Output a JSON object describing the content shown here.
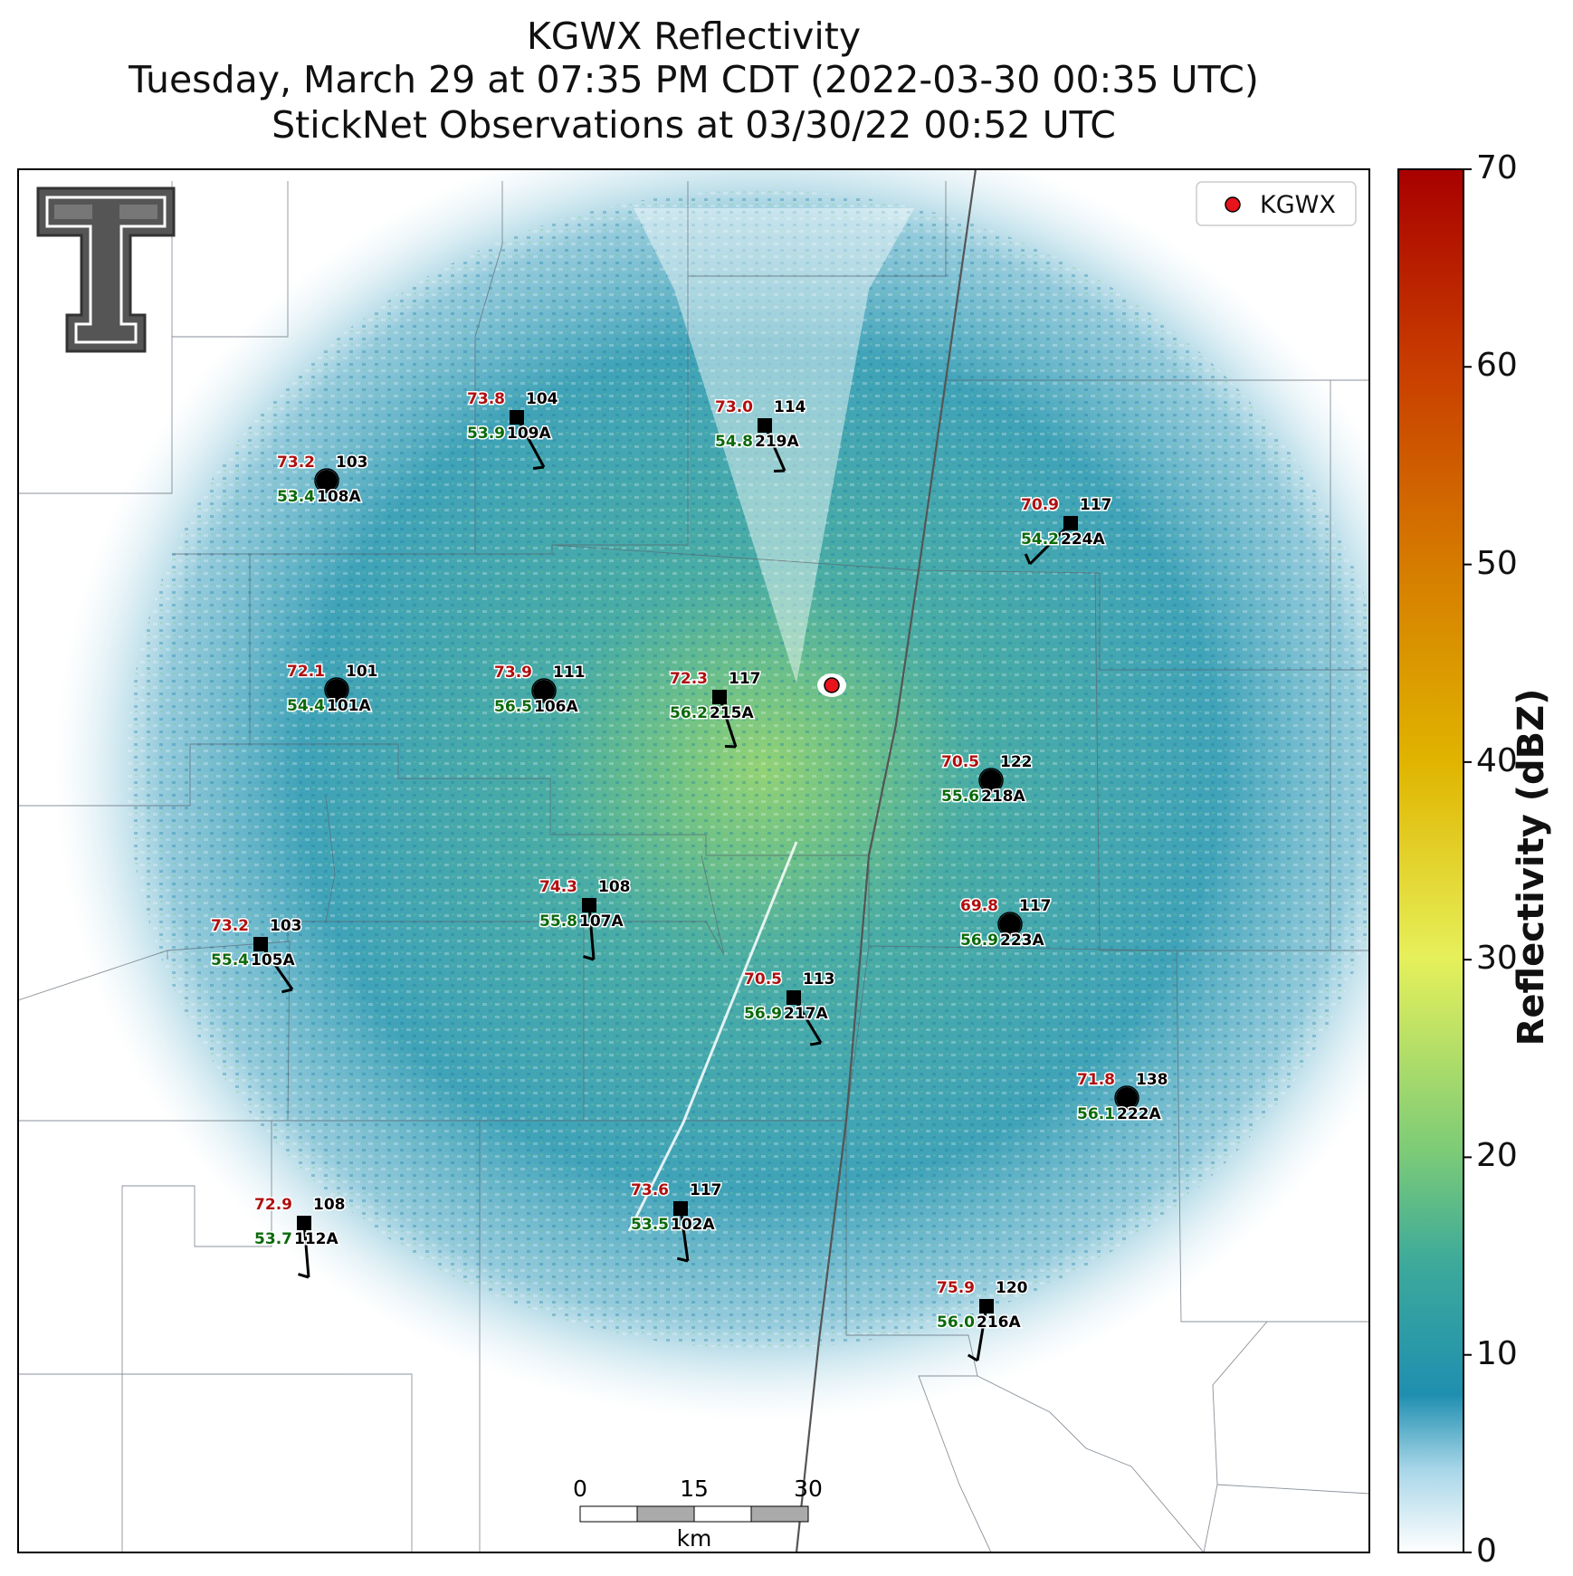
{
  "title": {
    "line1": "KGWX Reflectivity",
    "line2": "Tuesday, March 29 at 07:35 PM CDT (2022-03-30 00:35 UTC)",
    "line3": "StickNet Observations at 03/30/22 00:52 UTC"
  },
  "legend": {
    "label": "KGWX",
    "marker_color": "#e8141b"
  },
  "radar": {
    "id": "KGWX"
  },
  "colorbar": {
    "label": "Reflectivity (dBZ)",
    "ticks": [
      "0",
      "10",
      "20",
      "30",
      "40",
      "50",
      "60",
      "70"
    ],
    "min": 0,
    "max": 70,
    "colors": [
      {
        "stop": 0,
        "color": "#ffffff"
      },
      {
        "stop": 8,
        "color": "#1f8fb0"
      },
      {
        "stop": 15,
        "color": "#3daa9a"
      },
      {
        "stop": 20,
        "color": "#7ccb77"
      },
      {
        "stop": 30,
        "color": "#e6f05a"
      },
      {
        "stop": 40,
        "color": "#e0b500"
      },
      {
        "stop": 50,
        "color": "#d67d00"
      },
      {
        "stop": 60,
        "color": "#c83c00"
      },
      {
        "stop": 70,
        "color": "#a80000"
      }
    ]
  },
  "scalebar": {
    "ticks": [
      "0",
      "15",
      "30"
    ],
    "unit": "km"
  },
  "station_colors": {
    "temperature": "#b01010",
    "dewpoint": "#0b6a0b",
    "id": "#000000"
  },
  "stations": [
    {
      "id": "104",
      "temp": "73.8",
      "dew": "53.9",
      "sub": "109A",
      "marker": "square"
    },
    {
      "id": "114",
      "temp": "73.0",
      "dew": "54.8",
      "sub": "219A",
      "marker": "square"
    },
    {
      "id": "103",
      "temp": "73.2",
      "dew": "53.4",
      "sub": "108A",
      "marker": "circle"
    },
    {
      "id": "117",
      "temp": "70.9",
      "dew": "54.2",
      "sub": "224A",
      "marker": "square"
    },
    {
      "id": "101",
      "temp": "72.1",
      "dew": "54.4",
      "sub": "101A",
      "marker": "circle"
    },
    {
      "id": "111",
      "temp": "73.9",
      "dew": "56.5",
      "sub": "106A",
      "marker": "circle"
    },
    {
      "id": "117",
      "temp": "72.3",
      "dew": "56.2",
      "sub": "215A",
      "marker": "square"
    },
    {
      "id": "122",
      "temp": "70.5",
      "dew": "55.6",
      "sub": "218A",
      "marker": "circle"
    },
    {
      "id": "108",
      "temp": "74.3",
      "dew": "55.8",
      "sub": "107A",
      "marker": "square"
    },
    {
      "id": "117",
      "temp": "69.8",
      "dew": "56.9",
      "sub": "223A",
      "marker": "circle"
    },
    {
      "id": "103",
      "temp": "73.2",
      "dew": "55.4",
      "sub": "105A",
      "marker": "square"
    },
    {
      "id": "113",
      "temp": "70.5",
      "dew": "56.9",
      "sub": "217A",
      "marker": "square"
    },
    {
      "id": "138",
      "temp": "71.8",
      "dew": "56.1",
      "sub": "222A",
      "marker": "circle"
    },
    {
      "id": "108",
      "temp": "72.9",
      "dew": "53.7",
      "sub": "112A",
      "marker": "square"
    },
    {
      "id": "117",
      "temp": "73.6",
      "dew": "53.5",
      "sub": "102A",
      "marker": "square"
    },
    {
      "id": "120",
      "temp": "75.9",
      "dew": "56.0",
      "sub": "216A",
      "marker": "square"
    }
  ]
}
